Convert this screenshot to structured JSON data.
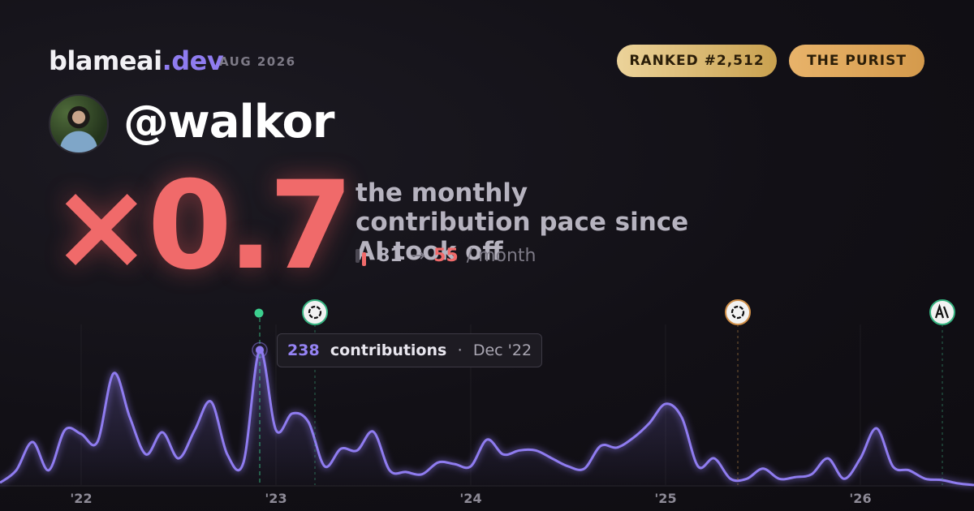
{
  "brand": {
    "name": "blameai",
    "tld": ".dev",
    "period": "AUG 2026"
  },
  "badges": [
    "RANKED #2,512",
    "THE PURIST"
  ],
  "user": {
    "handle": "@walkor"
  },
  "headline": {
    "multiplier": "×0.7",
    "caption": "the monthly contribution pace since AI took off",
    "before": 81,
    "arrow": "→",
    "after": 55,
    "unit": "/ month"
  },
  "tooltip": {
    "label": "contributions",
    "separator": "·"
  },
  "chart_data": {
    "type": "area",
    "color": "#8f7cf0",
    "categories": [
      null,
      null,
      null,
      null,
      null,
      null,
      null,
      null,
      null,
      null,
      null,
      null,
      null,
      null,
      null,
      null,
      "Dec '22",
      null,
      null,
      null,
      null,
      null,
      null,
      null,
      null,
      null,
      null,
      null,
      null,
      null,
      null,
      null,
      null,
      null,
      null,
      null,
      null,
      null,
      null,
      null,
      null,
      null,
      null,
      null,
      null,
      null,
      null,
      null,
      null,
      null,
      null,
      null,
      null,
      null,
      null,
      null,
      null,
      null,
      null,
      null,
      null
    ],
    "values": [
      4,
      26,
      76,
      26,
      97,
      90,
      76,
      197,
      119,
      54,
      93,
      47,
      97,
      147,
      54,
      40,
      238,
      97,
      126,
      111,
      33,
      64,
      61,
      94,
      26,
      23,
      19,
      40,
      37,
      33,
      80,
      54,
      61,
      61,
      47,
      33,
      29,
      69,
      66,
      83,
      109,
      143,
      119,
      33,
      47,
      11,
      11,
      29,
      11,
      14,
      19,
      47,
      11,
      47,
      100,
      33,
      26,
      11,
      9,
      3,
      0
    ],
    "xticks": [
      {
        "value": 5,
        "label": "'22"
      },
      {
        "value": 17,
        "label": "'23"
      },
      {
        "value": 29,
        "label": "'24"
      },
      {
        "value": 41,
        "label": "'25"
      },
      {
        "value": 53,
        "label": "'26"
      }
    ],
    "xlim": [
      0,
      60
    ],
    "ylim": [
      0,
      283
    ],
    "highlight": 16
  }
}
